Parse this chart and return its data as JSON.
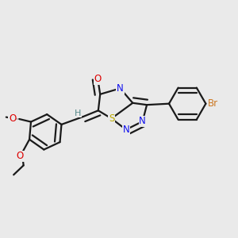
{
  "bg": "#eaeaea",
  "bond_color": "#1a1a1a",
  "bond_lw": 1.6,
  "dbo": 0.022,
  "colors": {
    "C": "#1a1a1a",
    "N": "#1010ee",
    "O": "#dd0000",
    "S": "#bbaa00",
    "Br": "#cc7722",
    "H": "#558888"
  },
  "fs": 8.5
}
